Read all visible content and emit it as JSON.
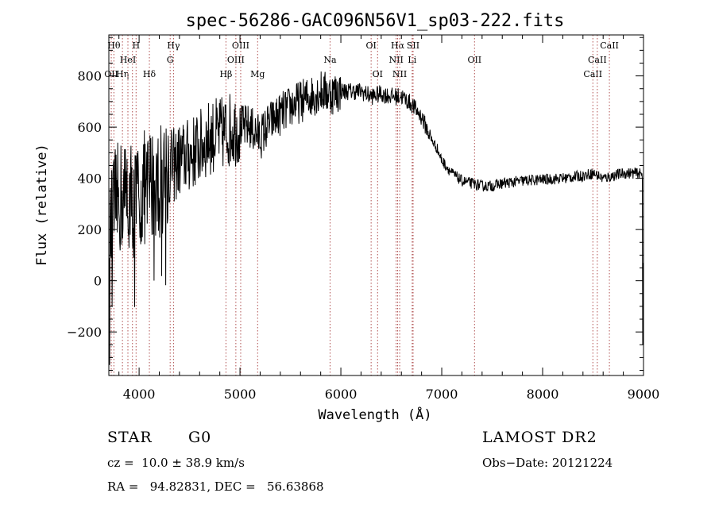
{
  "chart_data": {
    "type": "line",
    "title": "spec-56286-GAC096N56V1_sp03-222.fits",
    "xlabel": "Wavelength (Å)",
    "ylabel": "Flux (relative)",
    "xlim": [
      3700,
      9000
    ],
    "ylim": [
      -370,
      960
    ],
    "x_ticks": [
      4000,
      5000,
      6000,
      7000,
      8000,
      9000
    ],
    "x_tick_labels": [
      "4000",
      "5000",
      "6000",
      "7000",
      "8000",
      "9000"
    ],
    "y_ticks": [
      -200,
      0,
      200,
      400,
      600,
      800
    ],
    "y_tick_labels": [
      "−200",
      "0",
      "200",
      "400",
      "600",
      "800"
    ],
    "grid": false,
    "line_color": "#000000",
    "marker_color": "#b05050",
    "spectrum_anchors": [
      [
        3700,
        120
      ],
      [
        3750,
        280
      ],
      [
        3800,
        320
      ],
      [
        3850,
        330
      ],
      [
        3900,
        350
      ],
      [
        3950,
        300
      ],
      [
        4000,
        330
      ],
      [
        4050,
        360
      ],
      [
        4100,
        370
      ],
      [
        4150,
        390
      ],
      [
        4200,
        380
      ],
      [
        4250,
        430
      ],
      [
        4300,
        440
      ],
      [
        4350,
        450
      ],
      [
        4400,
        470
      ],
      [
        4450,
        480
      ],
      [
        4500,
        490
      ],
      [
        4600,
        520
      ],
      [
        4700,
        560
      ],
      [
        4800,
        570
      ],
      [
        4900,
        590
      ],
      [
        5000,
        600
      ],
      [
        5100,
        600
      ],
      [
        5200,
        560
      ],
      [
        5300,
        620
      ],
      [
        5400,
        650
      ],
      [
        5500,
        680
      ],
      [
        5600,
        700
      ],
      [
        5700,
        720
      ],
      [
        5800,
        740
      ],
      [
        5900,
        730
      ],
      [
        6000,
        740
      ],
      [
        6100,
        740
      ],
      [
        6200,
        740
      ],
      [
        6300,
        720
      ],
      [
        6400,
        730
      ],
      [
        6500,
        720
      ],
      [
        6600,
        720
      ],
      [
        6700,
        690
      ],
      [
        6800,
        640
      ],
      [
        6900,
        550
      ],
      [
        6950,
        520
      ],
      [
        7000,
        470
      ],
      [
        7100,
        420
      ],
      [
        7200,
        390
      ],
      [
        7300,
        380
      ],
      [
        7400,
        370
      ],
      [
        7500,
        370
      ],
      [
        7600,
        380
      ],
      [
        7800,
        390
      ],
      [
        8000,
        395
      ],
      [
        8200,
        400
      ],
      [
        8400,
        410
      ],
      [
        8500,
        420
      ],
      [
        8600,
        400
      ],
      [
        8800,
        420
      ],
      [
        8950,
        420
      ],
      [
        9000,
        410
      ]
    ],
    "line_markers": [
      {
        "wavelength": 3724,
        "label": "OII",
        "row": 2
      },
      {
        "wavelength": 3750,
        "label": "Hθ",
        "row": 0
      },
      {
        "wavelength": 3835,
        "label": "Hη",
        "row": 2
      },
      {
        "wavelength": 3889,
        "label": "HeI",
        "row": 1
      },
      {
        "wavelength": 3934,
        "label": "",
        "row": 0
      },
      {
        "wavelength": 3970,
        "label": "H",
        "row": 0
      },
      {
        "wavelength": 4102,
        "label": "Hδ",
        "row": 2
      },
      {
        "wavelength": 4308,
        "label": "G",
        "row": 1
      },
      {
        "wavelength": 4341,
        "label": "Hγ",
        "row": 0
      },
      {
        "wavelength": 4861,
        "label": "Hβ",
        "row": 2
      },
      {
        "wavelength": 4959,
        "label": "OIII",
        "row": 1
      },
      {
        "wavelength": 5007,
        "label": "OIII",
        "row": 0
      },
      {
        "wavelength": 5175,
        "label": "Mg",
        "row": 2
      },
      {
        "wavelength": 5893,
        "label": "Na",
        "row": 1
      },
      {
        "wavelength": 6300,
        "label": "OI",
        "row": 0
      },
      {
        "wavelength": 6364,
        "label": "OI",
        "row": 2
      },
      {
        "wavelength": 6548,
        "label": "NII",
        "row": 1
      },
      {
        "wavelength": 6563,
        "label": "Hα",
        "row": 0
      },
      {
        "wavelength": 6583,
        "label": "NII",
        "row": 2
      },
      {
        "wavelength": 6707,
        "label": "Li",
        "row": 1
      },
      {
        "wavelength": 6716,
        "label": "SII",
        "row": 0
      },
      {
        "wavelength": 7325,
        "label": "OII",
        "row": 1
      },
      {
        "wavelength": 8498,
        "label": "CaII",
        "row": 2
      },
      {
        "wavelength": 8542,
        "label": "CaII",
        "row": 1
      },
      {
        "wavelength": 8662,
        "label": "CaII",
        "row": 0
      }
    ]
  },
  "info": {
    "object_class": "STAR",
    "subclass": "G0",
    "survey": "LAMOST DR2",
    "redshift_line": "cz =  10.0 ± 38.9 km/s",
    "obs_date": "Obs−Date: 20121224",
    "coordinates": "RA =   94.82831, DEC =   56.63868"
  }
}
